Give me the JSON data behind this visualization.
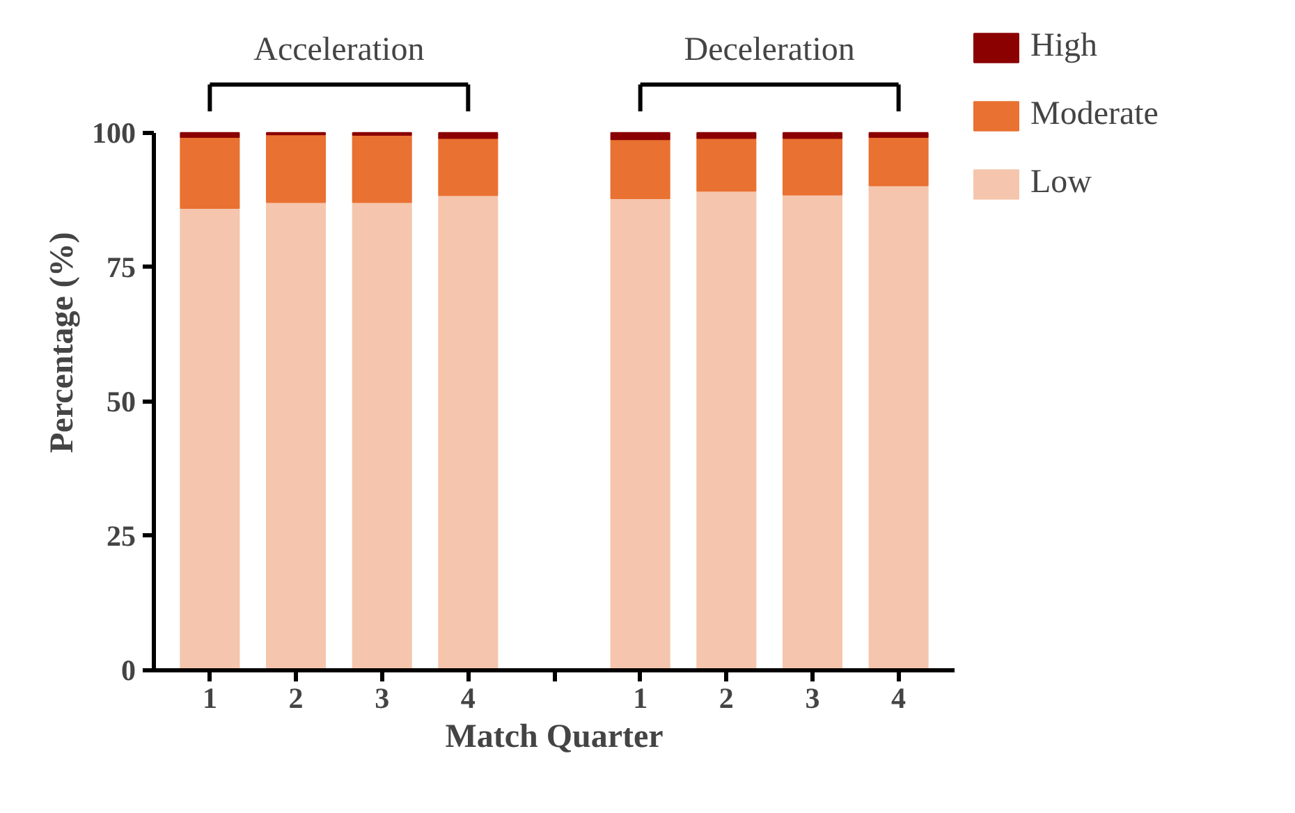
{
  "chart_data": {
    "type": "bar",
    "stacked": true,
    "xlabel": "Match Quarter",
    "ylabel": "Percentage (%)",
    "categories": [
      "1",
      "2",
      "3",
      "4",
      null,
      "1",
      "2",
      "3",
      "4"
    ],
    "series": [
      {
        "name": "Low",
        "color": "#f5c6ad",
        "values": [
          86.0,
          87.1,
          87.1,
          88.4,
          null,
          87.8,
          89.2,
          88.5,
          90.2
        ]
      },
      {
        "name": "Moderate",
        "color": "#e97132",
        "values": [
          13.2,
          12.6,
          12.5,
          10.6,
          null,
          11.0,
          9.8,
          10.5,
          9.0
        ]
      },
      {
        "name": "High",
        "color": "#8b0000",
        "values": [
          0.8,
          0.3,
          0.4,
          1.0,
          null,
          1.2,
          1.0,
          1.0,
          0.8
        ]
      }
    ],
    "annotations": [
      "Acceleration",
      "Deceleration"
    ],
    "ylim": [
      0,
      100
    ],
    "yticks": [
      0,
      25,
      50,
      75,
      100
    ],
    "grid": false,
    "legend": "top right"
  }
}
